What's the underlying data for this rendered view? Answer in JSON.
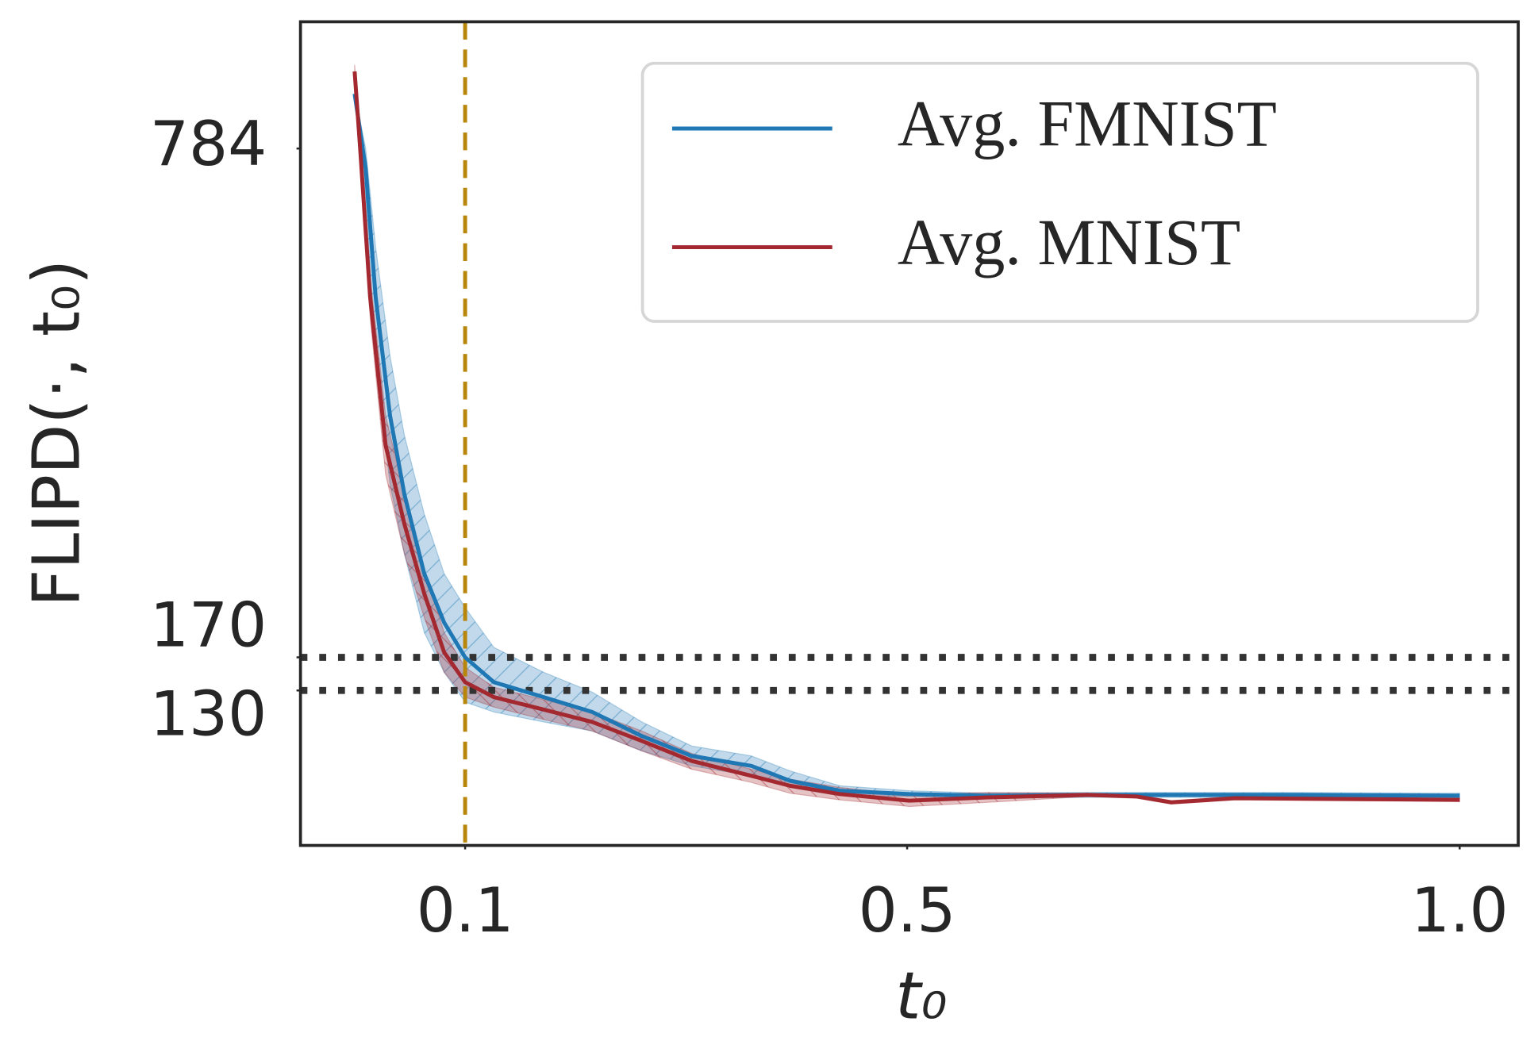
{
  "chart_data": {
    "type": "line",
    "xlabel": "t₀",
    "ylabel": "FLIPD(·, t₀)",
    "xlim": [
      -0.049,
      1.053
    ],
    "ylim": [
      -57,
      937
    ],
    "xticks": [
      0.1,
      0.5,
      {
        "value": 1.0,
        "label": "1.0"
      }
    ],
    "yticks": [
      784,
      170,
      130
    ],
    "hlines": [
      170,
      130
    ],
    "vline": 0.1,
    "legend": "upper right",
    "series": [
      {
        "name": "Avg. FMNIST",
        "color": "#1f77b4",
        "x": [
          0.0,
          0.01,
          0.019,
          0.032,
          0.045,
          0.063,
          0.081,
          0.1,
          0.126,
          0.171,
          0.215,
          0.26,
          0.305,
          0.359,
          0.394,
          0.439,
          0.502,
          0.573,
          0.663,
          0.752,
          0.842,
          1.0
        ],
        "values": [
          850,
          760,
          605,
          462,
          367,
          271,
          212,
          170,
          140,
          122,
          104,
          75,
          51,
          39,
          21,
          9,
          5,
          3,
          4,
          4,
          4,
          3
        ],
        "upper": [
          850,
          784,
          665,
          534,
          438,
          343,
          271,
          230,
          182,
          152,
          128,
          92,
          63,
          51,
          33,
          15,
          9,
          6,
          7,
          7,
          7,
          6
        ],
        "lower": [
          850,
          724,
          534,
          379,
          295,
          200,
          152,
          116,
          104,
          92,
          81,
          57,
          39,
          27,
          13,
          3,
          2,
          0,
          1,
          1,
          1,
          0
        ]
      },
      {
        "name": "Avg. MNIST",
        "color": "#a3282f",
        "x": [
          0.0,
          0.005,
          0.014,
          0.028,
          0.045,
          0.063,
          0.081,
          0.1,
          0.126,
          0.171,
          0.215,
          0.26,
          0.305,
          0.359,
          0.394,
          0.439,
          0.502,
          0.573,
          0.663,
          0.708,
          0.739,
          0.797,
          1.0
        ],
        "values": [
          877,
          784,
          605,
          426,
          331,
          247,
          176,
          140,
          122,
          107,
          92,
          69,
          45,
          27,
          15,
          5,
          -3,
          1,
          4,
          2,
          -5,
          0,
          -2
        ],
        "upper": [
          885,
          796,
          629,
          462,
          367,
          277,
          200,
          158,
          134,
          119,
          104,
          81,
          54,
          35,
          23,
          13,
          4,
          7,
          6,
          4,
          -3,
          2,
          0
        ],
        "lower": [
          868,
          766,
          581,
          391,
          295,
          218,
          152,
          122,
          110,
          95,
          81,
          57,
          35,
          19,
          6,
          -2,
          -10,
          -5,
          2,
          0,
          -7,
          -2,
          -4
        ]
      }
    ]
  }
}
